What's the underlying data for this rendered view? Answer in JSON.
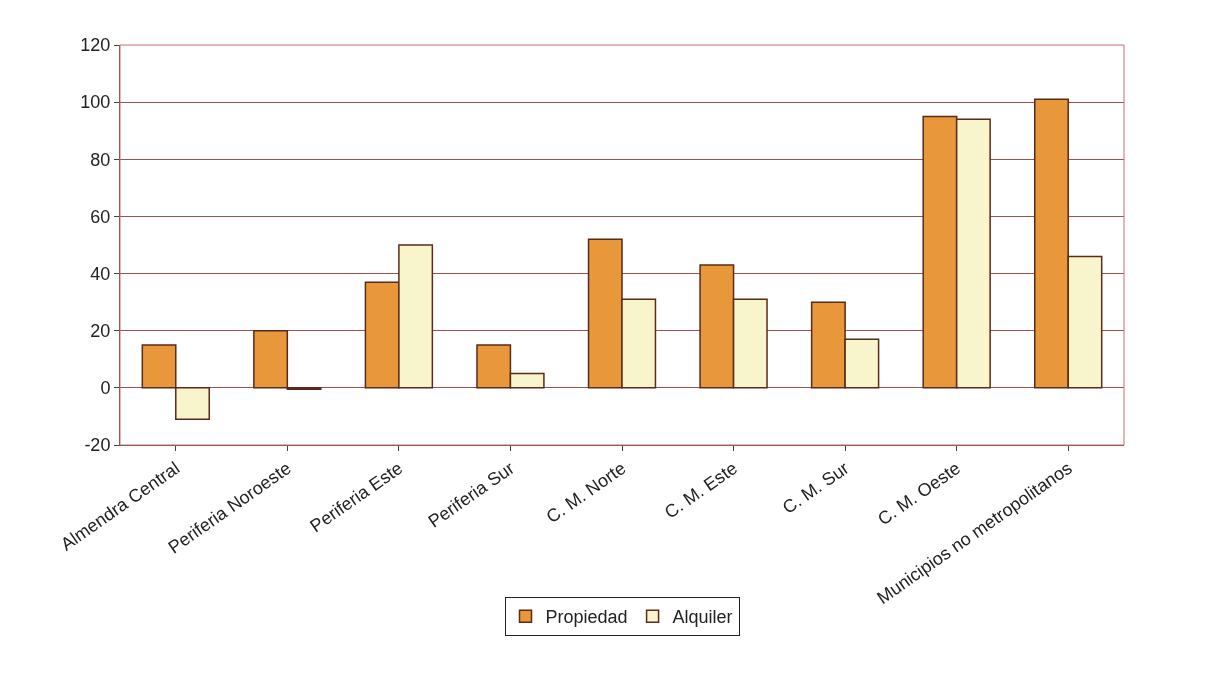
{
  "chart_data": {
    "type": "bar",
    "categories": [
      "Almendra Central",
      "Periferia Noroeste",
      "Periferia Este",
      "Periferia Sur",
      "C. M. Norte",
      "C. M. Este",
      "C. M. Sur",
      "C. M. Oeste",
      "Municipios no metropolitanos"
    ],
    "series": [
      {
        "name": "Propiedad",
        "color": "#e8973a",
        "values": [
          15,
          20,
          37,
          15,
          52,
          43,
          30,
          95,
          101
        ]
      },
      {
        "name": "Alquiler",
        "color": "#f8f5cc",
        "values": [
          -11,
          -0.5,
          50,
          5,
          31,
          31,
          17,
          94,
          46
        ]
      }
    ],
    "ylim": [
      -20,
      120
    ],
    "yticks": [
      -20,
      0,
      20,
      40,
      60,
      80,
      100,
      120
    ],
    "grid": "y",
    "legend": "bottom"
  }
}
